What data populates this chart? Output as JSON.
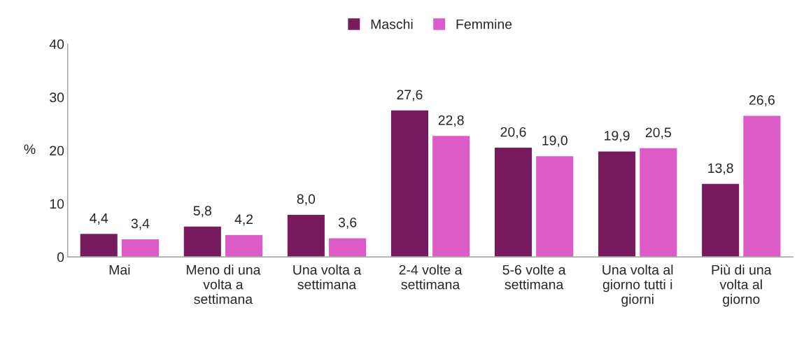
{
  "chart_data": {
    "type": "bar",
    "categories": [
      "Mai",
      "Meno di una\nvolta a\nsettimana",
      "Una volta a\nsettimana",
      "2-4 volte a\nsettimana",
      "5-6 volte a\nsettimana",
      "Una volta al\ngiorno tutti i\ngiorni",
      "Più di una\nvolta al\ngiorno"
    ],
    "series": [
      {
        "name": "Maschi",
        "color": "#771a5e",
        "values": [
          4.4,
          5.8,
          8.0,
          27.6,
          20.6,
          19.9,
          13.8
        ],
        "value_labels": [
          "4,4",
          "5,8",
          "8,0",
          "27,6",
          "20,6",
          "19,9",
          "13,8"
        ]
      },
      {
        "name": "Femmine",
        "color": "#dc5bc6",
        "values": [
          3.4,
          4.2,
          3.6,
          22.8,
          19.0,
          20.5,
          26.6
        ],
        "value_labels": [
          "3,4",
          "4,2",
          "3,6",
          "22,8",
          "19,0",
          "20,5",
          "26,6"
        ]
      }
    ],
    "ylabel": "%",
    "ylim": [
      0,
      40
    ],
    "yticks": [
      0,
      10,
      20,
      30,
      40
    ],
    "grid": false,
    "legend": "top"
  }
}
